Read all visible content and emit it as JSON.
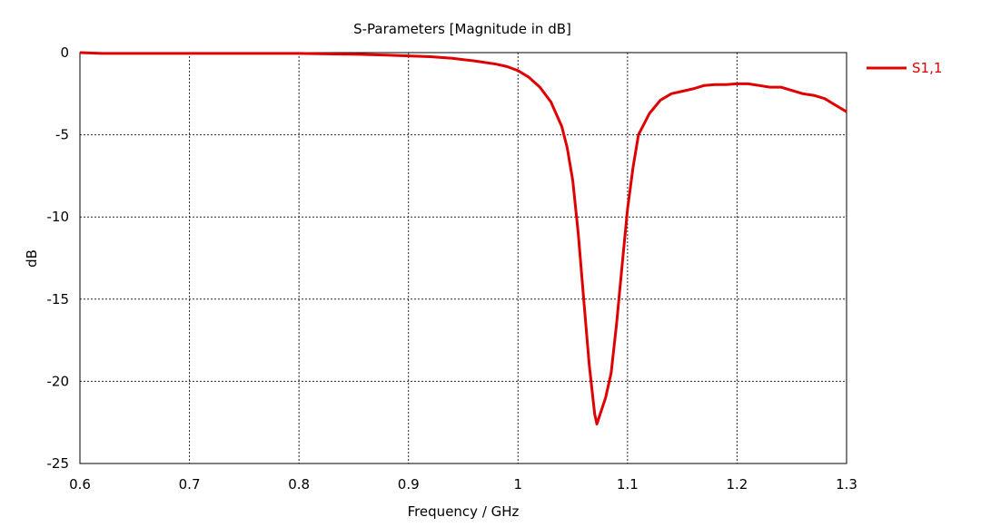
{
  "chart_data": {
    "type": "line",
    "title": "S-Parameters [Magnitude in dB]",
    "xlabel": "Frequency / GHz",
    "ylabel": "dB",
    "xlim": [
      0.6,
      1.3
    ],
    "ylim": [
      -25,
      0
    ],
    "x_ticks": [
      "0.6",
      "0.7",
      "0.8",
      "0.9",
      "1",
      "1.1",
      "1.2",
      "1.3"
    ],
    "y_ticks": [
      "0",
      "-5",
      "-10",
      "-15",
      "-20",
      "-25"
    ],
    "grid": true,
    "legend_position": "top-right",
    "series": [
      {
        "name": "S1,1",
        "color": "#e00000",
        "x": [
          0.6,
          0.62,
          0.65,
          0.7,
          0.75,
          0.8,
          0.85,
          0.88,
          0.9,
          0.92,
          0.94,
          0.96,
          0.98,
          0.99,
          1.0,
          1.01,
          1.02,
          1.03,
          1.04,
          1.045,
          1.05,
          1.055,
          1.06,
          1.065,
          1.07,
          1.072,
          1.075,
          1.08,
          1.085,
          1.09,
          1.095,
          1.1,
          1.105,
          1.11,
          1.12,
          1.13,
          1.14,
          1.15,
          1.16,
          1.17,
          1.18,
          1.19,
          1.2,
          1.21,
          1.22,
          1.23,
          1.24,
          1.25,
          1.26,
          1.27,
          1.28,
          1.29,
          1.3
        ],
        "y": [
          0.0,
          -0.05,
          -0.05,
          -0.05,
          -0.05,
          -0.05,
          -0.1,
          -0.15,
          -0.2,
          -0.25,
          -0.35,
          -0.5,
          -0.7,
          -0.85,
          -1.1,
          -1.5,
          -2.1,
          -3.0,
          -4.5,
          -5.8,
          -7.8,
          -11.0,
          -15.0,
          -19.0,
          -22.0,
          -22.6,
          -22.0,
          -21.0,
          -19.5,
          -16.5,
          -13.0,
          -9.5,
          -7.0,
          -5.0,
          -3.7,
          -2.9,
          -2.5,
          -2.35,
          -2.2,
          -2.0,
          -1.95,
          -1.95,
          -1.9,
          -1.9,
          -2.0,
          -2.1,
          -2.1,
          -2.3,
          -2.5,
          -2.6,
          -2.8,
          -3.2,
          -3.6
        ]
      }
    ]
  }
}
